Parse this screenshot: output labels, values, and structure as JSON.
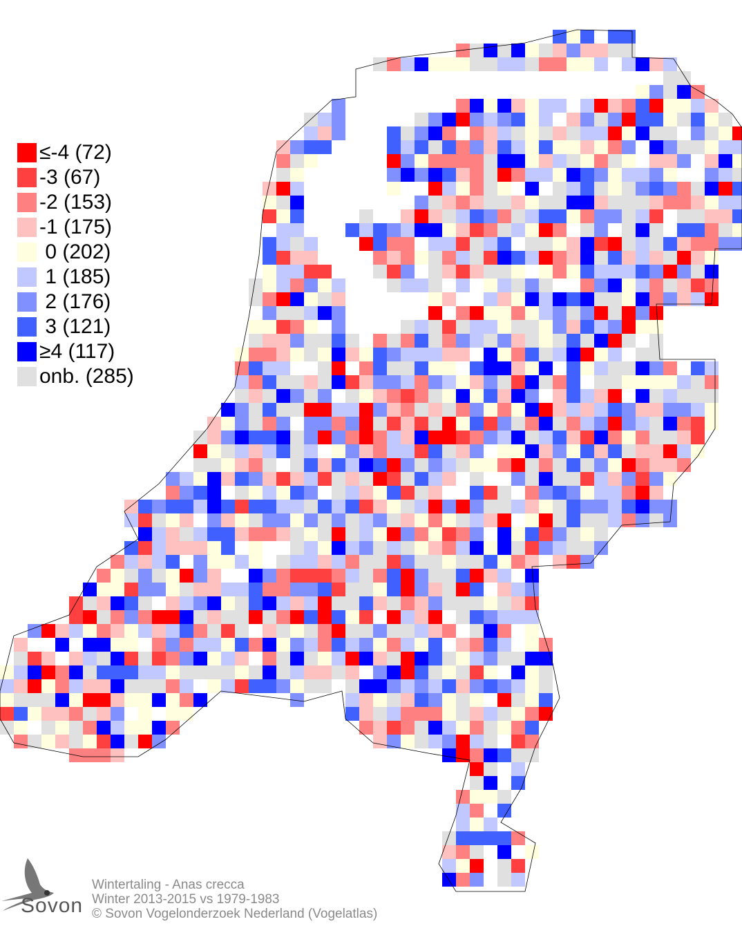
{
  "legend": {
    "items": [
      {
        "label": "≤-4 (72)",
        "value": -4,
        "count": 72,
        "color": "#ff0000"
      },
      {
        "label": "-3 (67)",
        "value": -3,
        "count": 67,
        "color": "#ff4040"
      },
      {
        "label": "-2 (153)",
        "value": -2,
        "count": 153,
        "color": "#ff8080"
      },
      {
        "label": "-1 (175)",
        "value": -1,
        "count": 175,
        "color": "#ffc0c0"
      },
      {
        "label": " 0 (202)",
        "value": 0,
        "count": 202,
        "color": "#ffffe0"
      },
      {
        "label": " 1 (185)",
        "value": 1,
        "count": 185,
        "color": "#c0c8ff"
      },
      {
        "label": " 2 (176)",
        "value": 2,
        "count": 176,
        "color": "#8090ff"
      },
      {
        "label": " 3 (121)",
        "value": 3,
        "count": 121,
        "color": "#4060ff"
      },
      {
        "label": "≥4 (117)",
        "value": 4,
        "count": 117,
        "color": "#0000ff"
      },
      {
        "label": "onb. (285)",
        "value": "onb.",
        "count": 285,
        "color": "#e0e0e0"
      }
    ]
  },
  "footer": {
    "species": "Wintertaling - Anas crecca",
    "period": "Winter 2013-2015 vs 1979-1983",
    "copyright": "© Sovon Vogelonderzoek Nederland (Vogelatlas)"
  },
  "logo": {
    "text": "Sovon",
    "icon": "swallow-icon"
  }
}
